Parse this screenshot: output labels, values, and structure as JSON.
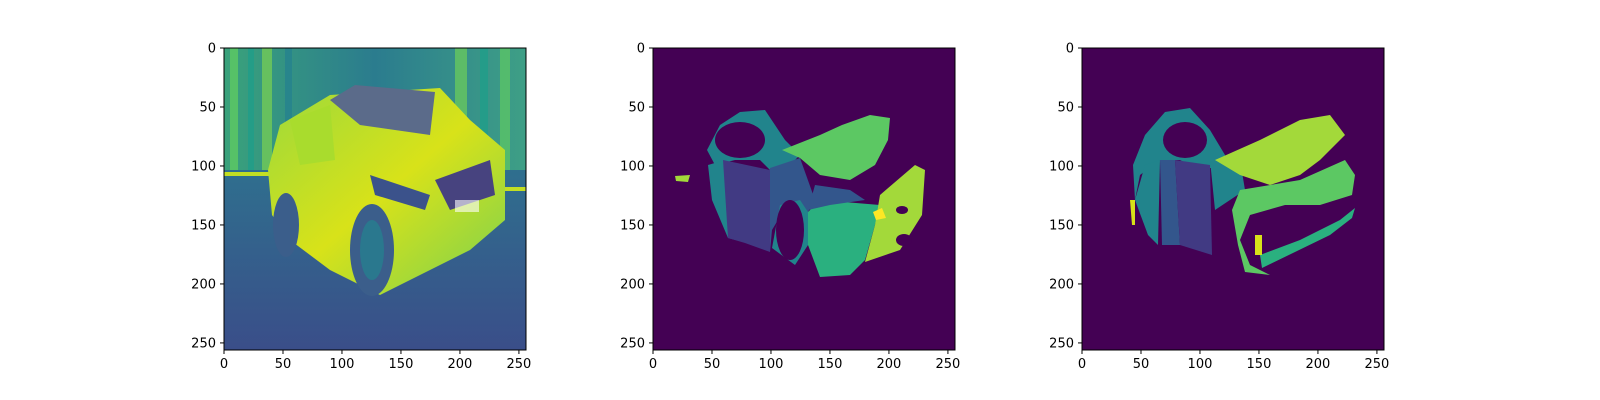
{
  "chart_data": [
    {
      "type": "image",
      "description_values": "grayscale photo of a car rendered with viridis colormap",
      "xlim": [
        0,
        256
      ],
      "ylim": [
        256,
        0
      ],
      "xticks": [
        0,
        50,
        100,
        150,
        200,
        250
      ],
      "yticks": [
        0,
        50,
        100,
        150,
        200,
        250
      ],
      "colormap": "viridis"
    },
    {
      "type": "heatmap",
      "xlim": [
        0,
        256
      ],
      "ylim": [
        256,
        0
      ],
      "xticks": [
        0,
        50,
        100,
        150,
        200,
        250
      ],
      "yticks": [
        0,
        50,
        100,
        150,
        200,
        250
      ],
      "colormap": "viridis",
      "background_color": "#440154"
    },
    {
      "type": "heatmap",
      "xlim": [
        0,
        256
      ],
      "ylim": [
        256,
        0
      ],
      "xticks": [
        0,
        50,
        100,
        150,
        200,
        250
      ],
      "yticks": [
        0,
        50,
        100,
        150,
        200,
        250
      ],
      "colormap": "viridis",
      "background_color": "#440154"
    }
  ],
  "colors": {
    "background": "#440154",
    "seg_teal": "#21848c",
    "seg_indigo": "#413a83",
    "seg_blue": "#33568c",
    "seg_green": "#5cc863",
    "seg_mid_green": "#2ab07f",
    "seg_lime": "#a3d93a",
    "seg_yellow": "#fde725",
    "photo_road": "#3b5a8c",
    "photo_bg": "#2a8f85",
    "photo_car": "#b6de2b",
    "photo_dark": "#30407e"
  }
}
